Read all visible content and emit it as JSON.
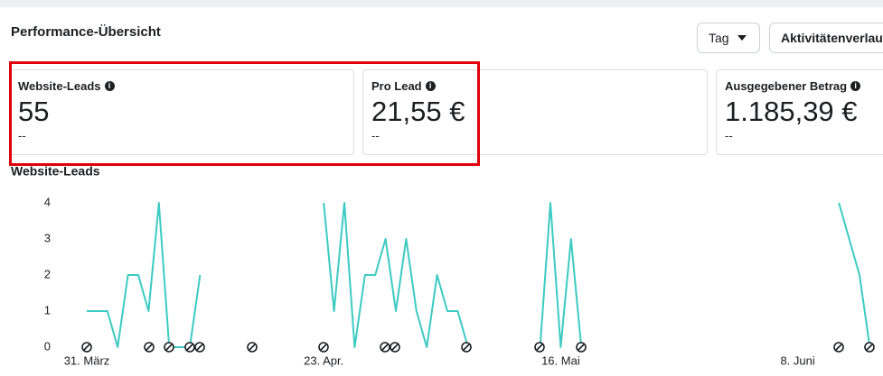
{
  "header": {
    "title": "Performance-Übersicht",
    "buttons": [
      "Tag",
      "Aktivitätenverlauf"
    ]
  },
  "cards": [
    {
      "label": "Website-Leads",
      "value": "55",
      "change": "--"
    },
    {
      "label": "Pro Lead",
      "value": "21,55 €",
      "change": "--"
    },
    {
      "label": "Ausgegebener Betrag",
      "value": "1.185,39 €",
      "change": "--"
    }
  ],
  "chart_data": {
    "type": "line",
    "title": "Website-Leads",
    "color": "#3ccac2",
    "categories": [
      "31. März",
      null,
      null,
      null,
      null,
      null,
      null,
      null,
      null,
      null,
      null,
      null,
      null,
      null,
      null,
      null,
      null,
      null,
      null,
      null,
      null,
      null,
      null,
      "23. Apr.",
      null,
      null,
      null,
      null,
      null,
      null,
      null,
      null,
      null,
      null,
      null,
      null,
      null,
      null,
      null,
      null,
      null,
      null,
      null,
      null,
      null,
      null,
      "16. Mai",
      null,
      null,
      null,
      null,
      null,
      null,
      null,
      null,
      null,
      null,
      null,
      null,
      null,
      null,
      null,
      null,
      null,
      null,
      null,
      null,
      null,
      null,
      "8. Juni",
      null,
      null,
      null,
      null,
      null,
      null,
      null
    ],
    "values": [
      1,
      1,
      1,
      0,
      2,
      2,
      1,
      4,
      0,
      0,
      0,
      2,
      null,
      null,
      null,
      null,
      null,
      null,
      null,
      null,
      null,
      null,
      null,
      4,
      1,
      4,
      0,
      2,
      2,
      3,
      1,
      3,
      1,
      0,
      2,
      1,
      1,
      0,
      null,
      null,
      null,
      null,
      null,
      null,
      0,
      4,
      0,
      3,
      0,
      null,
      null,
      null,
      null,
      null,
      null,
      null,
      null,
      null,
      null,
      null,
      null,
      null,
      null,
      null,
      null,
      null,
      null,
      null,
      null,
      null,
      null,
      null,
      null,
      4,
      3,
      2,
      0
    ],
    "ylim": [
      0,
      4
    ],
    "yticks": [
      0,
      1,
      2,
      3,
      4
    ],
    "grid": false
  }
}
